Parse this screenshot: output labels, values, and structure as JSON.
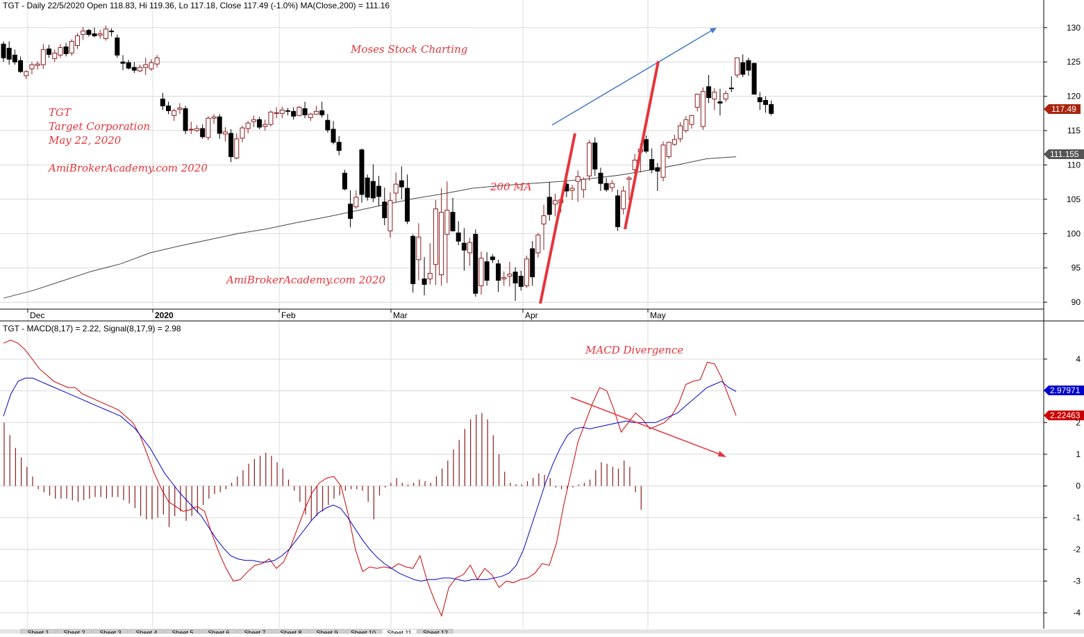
{
  "colors": {
    "annotation": "#e8333a",
    "bull_candle": "#8b1a1a",
    "bear_candle": "#000000",
    "ma_line": "#444444",
    "macd_line": "#cc0000",
    "signal_line": "#0000cc",
    "histogram": "#8b1a1a",
    "price_tag": "#a8250e",
    "ma_tag": "#555555",
    "signal_tag": "#0000cc",
    "macd_tag": "#cc0000",
    "uptrend_arrow": "#4477cc"
  },
  "chart_data": [
    {
      "type": "candlestick",
      "title": "TGT - Daily 22/5/2020 Open 118.83, Hi 119.36, Lo 117.18, Close 117.49 (-1.0%) MA(Close,200) = 111.16",
      "x_ticks": [
        "Dec",
        "2020",
        "Feb",
        "Mar",
        "Apr",
        "May"
      ],
      "y_ticks": [
        90,
        95,
        100,
        105,
        110,
        115,
        120,
        125,
        130
      ],
      "ylim": [
        89,
        132
      ],
      "grid": true,
      "ohlc": [
        [
          127.6,
          128.0,
          125.0,
          125.6
        ],
        [
          127.0,
          128.0,
          124.6,
          125.4
        ],
        [
          126.0,
          126.8,
          124.6,
          125.0
        ],
        [
          125.2,
          125.8,
          123.4,
          123.6
        ],
        [
          123.0,
          123.8,
          122.5,
          123.6
        ],
        [
          124.0,
          125.0,
          123.2,
          124.6
        ],
        [
          124.5,
          125.1,
          123.9,
          124.7
        ],
        [
          124.6,
          127.6,
          124.0,
          126.8
        ],
        [
          126.9,
          127.5,
          125.6,
          126.1
        ],
        [
          125.5,
          126.8,
          125.0,
          126.3
        ],
        [
          126.0,
          127.6,
          125.6,
          127.1
        ],
        [
          127.2,
          127.8,
          125.8,
          126.2
        ],
        [
          126.3,
          128.3,
          125.9,
          128.0
        ],
        [
          127.4,
          129.2,
          126.9,
          128.8
        ],
        [
          129.0,
          130.1,
          128.2,
          129.5
        ],
        [
          129.6,
          129.8,
          128.7,
          129.0
        ],
        [
          129.1,
          130.0,
          128.6,
          128.8
        ],
        [
          128.9,
          129.7,
          128.4,
          129.1
        ],
        [
          128.4,
          130.3,
          128.1,
          129.8
        ],
        [
          129.5,
          129.9,
          128.7,
          129.4
        ],
        [
          128.5,
          129.0,
          125.6,
          126.0
        ],
        [
          125.0,
          126.0,
          123.8,
          124.8
        ],
        [
          124.9,
          125.3,
          123.9,
          124.1
        ],
        [
          124.2,
          125.0,
          123.4,
          123.8
        ],
        [
          123.7,
          124.6,
          123.5,
          124.2
        ],
        [
          124.2,
          125.6,
          123.1,
          124.6
        ],
        [
          124.0,
          125.4,
          123.7,
          124.9
        ],
        [
          124.7,
          126.0,
          124.2,
          125.6
        ],
        [
          119.6,
          120.5,
          118.0,
          118.6
        ],
        [
          118.6,
          119.2,
          117.4,
          117.9
        ],
        [
          117.2,
          118.2,
          116.4,
          117.9
        ],
        [
          118.1,
          119.0,
          117.4,
          118.3
        ],
        [
          118.2,
          118.6,
          114.5,
          115.0
        ],
        [
          115.1,
          116.3,
          114.5,
          115.2
        ],
        [
          115.0,
          115.8,
          114.8,
          115.3
        ],
        [
          115.3,
          115.9,
          113.8,
          114.1
        ],
        [
          114.0,
          117.1,
          113.6,
          116.8
        ],
        [
          116.8,
          117.4,
          116.0,
          117.0
        ],
        [
          117.0,
          117.4,
          113.8,
          114.6
        ],
        [
          114.5,
          115.5,
          113.4,
          114.8
        ],
        [
          114.6,
          115.2,
          110.4,
          111.2
        ],
        [
          111.0,
          114.6,
          110.8,
          113.8
        ],
        [
          113.9,
          115.7,
          113.3,
          115.4
        ],
        [
          115.3,
          116.4,
          114.6,
          116.1
        ],
        [
          116.3,
          117.2,
          115.5,
          116.6
        ],
        [
          116.6,
          117.0,
          115.2,
          115.5
        ],
        [
          115.6,
          116.6,
          115.0,
          115.9
        ],
        [
          115.9,
          117.9,
          115.6,
          117.7
        ],
        [
          117.6,
          118.4,
          116.8,
          117.6
        ],
        [
          117.5,
          118.5,
          116.8,
          118.0
        ],
        [
          117.9,
          118.3,
          117.2,
          117.8
        ],
        [
          117.8,
          118.4,
          116.6,
          117.1
        ],
        [
          117.2,
          118.6,
          117.1,
          118.4
        ],
        [
          118.2,
          119.2,
          116.8,
          117.3
        ],
        [
          116.9,
          117.6,
          116.4,
          117.4
        ],
        [
          117.4,
          118.6,
          117.3,
          117.8
        ],
        [
          117.9,
          119.2,
          116.9,
          117.3
        ],
        [
          116.5,
          117.4,
          114.7,
          115.1
        ],
        [
          115.2,
          116.4,
          113.0,
          113.3
        ],
        [
          113.3,
          114.2,
          111.4,
          112.1
        ],
        [
          108.8,
          109.3,
          106.3,
          106.5
        ],
        [
          104.3,
          106.3,
          100.9,
          102.2
        ],
        [
          103.9,
          106.3,
          103.6,
          105.3
        ],
        [
          112.2,
          112.4,
          104.5,
          105.7
        ],
        [
          108.1,
          108.6,
          104.8,
          105.3
        ],
        [
          107.6,
          110.1,
          104.6,
          105.2
        ],
        [
          106.9,
          108.4,
          104.0,
          105.4
        ],
        [
          104.6,
          106.7,
          101.2,
          102.3
        ],
        [
          100.4,
          106.0,
          99.4,
          104.8
        ],
        [
          105.9,
          108.9,
          104.6,
          107.2
        ],
        [
          107.7,
          109.8,
          105.0,
          106.8
        ],
        [
          106.6,
          108.6,
          101.4,
          101.8
        ],
        [
          99.6,
          99.9,
          91.4,
          92.7
        ],
        [
          96.2,
          101.5,
          93.2,
          99.5
        ],
        [
          93.4,
          96.6,
          91.0,
          92.6
        ],
        [
          93.4,
          98.6,
          92.6,
          94.2
        ],
        [
          95.5,
          104.9,
          92.5,
          103.6
        ],
        [
          94.0,
          106.6,
          92.4,
          103.1
        ],
        [
          99.9,
          107.6,
          92.8,
          103.4
        ],
        [
          103.1,
          105.2,
          100.3,
          100.4
        ],
        [
          100.1,
          101.8,
          98.3,
          98.9
        ],
        [
          98.6,
          100.8,
          94.6,
          97.6
        ],
        [
          97.2,
          99.4,
          95.3,
          98.7
        ],
        [
          99.9,
          100.6,
          90.8,
          91.3
        ],
        [
          92.4,
          97.4,
          91.1,
          96.4
        ],
        [
          95.9,
          97.3,
          92.4,
          93.2
        ],
        [
          96.6,
          97.0,
          95.7,
          96.2
        ],
        [
          95.6,
          96.2,
          91.5,
          93.2
        ],
        [
          93.4,
          94.5,
          92.4,
          93.6
        ],
        [
          93.8,
          95.9,
          92.3,
          94.1
        ],
        [
          94.4,
          95.1,
          90.2,
          92.8
        ],
        [
          93.8,
          94.6,
          91.7,
          92.3
        ],
        [
          92.4,
          96.8,
          92.1,
          96.3
        ],
        [
          97.8,
          98.9,
          92.4,
          93.7
        ],
        [
          97.2,
          100.1,
          96.5,
          99.8
        ],
        [
          101.4,
          104.2,
          97.6,
          102.6
        ],
        [
          105.3,
          107.5,
          101.9,
          102.8
        ],
        [
          104.3,
          105.8,
          102.5,
          104.8
        ],
        [
          104.5,
          105.2,
          103.1,
          104.9
        ],
        [
          107.2,
          108.2,
          105.3,
          106.2
        ],
        [
          106.3,
          107.1,
          104.9,
          106.6
        ],
        [
          107.6,
          109.2,
          104.6,
          108.3
        ],
        [
          106.4,
          108.2,
          105.2,
          107.9
        ],
        [
          108.4,
          113.6,
          107.7,
          113.2
        ],
        [
          113.2,
          114.0,
          108.4,
          109.4
        ],
        [
          108.8,
          109.6,
          106.2,
          107.3
        ],
        [
          107.3,
          108.1,
          106.1,
          106.4
        ],
        [
          106.7,
          107.8,
          106.1,
          107.3
        ],
        [
          105.5,
          106.4,
          100.4,
          101.0
        ],
        [
          103.6,
          106.9,
          102.8,
          106.2
        ],
        [
          107.9,
          108.4,
          104.9,
          108.1
        ],
        [
          109.3,
          111.6,
          108.2,
          110.7
        ],
        [
          111.9,
          113.1,
          108.9,
          112.3
        ],
        [
          113.7,
          114.3,
          111.7,
          112.0
        ],
        [
          110.8,
          112.4,
          108.8,
          109.3
        ],
        [
          109.6,
          110.3,
          106.2,
          109.1
        ],
        [
          108.2,
          113.4,
          107.6,
          112.9
        ],
        [
          111.2,
          113.4,
          110.9,
          113.3
        ],
        [
          113.0,
          114.4,
          112.8,
          113.7
        ],
        [
          113.8,
          116.2,
          113.3,
          115.7
        ],
        [
          115.0,
          117.1,
          114.7,
          116.6
        ],
        [
          115.9,
          117.3,
          115.3,
          117.2
        ],
        [
          118.4,
          120.4,
          117.8,
          120.3
        ],
        [
          115.6,
          121.3,
          115.1,
          120.7
        ],
        [
          121.4,
          123.1,
          119.0,
          119.8
        ],
        [
          119.6,
          121.2,
          118.0,
          120.6
        ],
        [
          119.2,
          121.1,
          117.2,
          119.0
        ],
        [
          119.6,
          120.8,
          119.2,
          120.4
        ],
        [
          121.2,
          122.9,
          120.6,
          121.1
        ],
        [
          123.1,
          125.6,
          122.7,
          125.6
        ],
        [
          124.9,
          126.1,
          122.8,
          123.2
        ],
        [
          125.2,
          125.6,
          123.0,
          123.8
        ],
        [
          124.8,
          124.9,
          120.3,
          120.3
        ],
        [
          119.8,
          120.6,
          118.0,
          119.2
        ],
        [
          119.4,
          120.0,
          117.6,
          118.8
        ],
        [
          118.8,
          119.4,
          117.2,
          117.5
        ]
      ],
      "ma_label": "200 MA",
      "ma200": [
        90.6,
        91.7,
        93.1,
        94.5,
        95.6,
        97.2,
        98.2,
        99.1,
        100.0,
        100.7,
        101.6,
        102.4,
        103.3,
        104.2,
        105.1,
        105.8,
        106.6,
        107.0,
        107.3,
        107.6,
        108.0,
        108.5,
        109.2,
        110.0,
        110.9,
        111.2
      ],
      "last_price_tag": "117.49",
      "ma_tag": "111.155"
    },
    {
      "type": "line",
      "title": "TGT - MACD(8,17) = 2.22, Signal(8,17,9) = 2.98",
      "y_ticks": [
        -4,
        -3,
        -2,
        -1,
        0,
        1,
        2,
        3,
        4
      ],
      "ylim": [
        -4.5,
        4.7
      ],
      "grid": true,
      "series": [
        {
          "name": "MACD(8,17)",
          "values": [
            4.5,
            4.6,
            4.5,
            4.3,
            4.0,
            3.7,
            3.5,
            3.3,
            3.2,
            3.1,
            3.1,
            2.9,
            2.8,
            2.7,
            2.6,
            2.5,
            2.4,
            2.2,
            2.0,
            1.6,
            1.0,
            0.4,
            -0.1,
            -0.5,
            -0.65,
            -0.8,
            -0.75,
            -0.65,
            -0.8,
            -1.5,
            -2.1,
            -2.6,
            -3.0,
            -2.95,
            -2.7,
            -2.5,
            -2.45,
            -2.3,
            -2.6,
            -2.4,
            -1.9,
            -1.3,
            -0.7,
            -0.2,
            0.1,
            0.25,
            0.3,
            0.0,
            -0.9,
            -2.0,
            -2.7,
            -2.55,
            -2.6,
            -2.55,
            -2.6,
            -2.45,
            -2.55,
            -2.6,
            -2.2,
            -3.0,
            -3.6,
            -4.1,
            -3.2,
            -2.9,
            -2.8,
            -2.5,
            -2.95,
            -2.6,
            -2.8,
            -3.2,
            -3.0,
            -3.05,
            -2.95,
            -2.9,
            -2.75,
            -2.45,
            -2.5,
            -1.8,
            -0.6,
            0.4,
            1.4,
            2.0,
            2.6,
            3.1,
            3.0,
            2.4,
            1.7,
            2.0,
            2.3,
            2.1,
            1.8,
            1.9,
            2.0,
            2.2,
            2.6,
            3.2,
            3.3,
            3.35,
            3.9,
            3.85,
            3.4,
            2.8,
            2.22
          ]
        },
        {
          "name": "Signal(8,17,9)",
          "values": [
            2.2,
            2.9,
            3.3,
            3.4,
            3.4,
            3.3,
            3.2,
            3.1,
            3.0,
            2.9,
            2.8,
            2.7,
            2.6,
            2.5,
            2.4,
            2.3,
            2.2,
            2.0,
            1.8,
            1.5,
            1.2,
            0.8,
            0.4,
            0.1,
            -0.2,
            -0.45,
            -0.7,
            -0.95,
            -1.3,
            -1.65,
            -1.95,
            -2.2,
            -2.3,
            -2.35,
            -2.35,
            -2.4,
            -2.4,
            -2.35,
            -2.2,
            -2.0,
            -1.7,
            -1.4,
            -1.1,
            -0.85,
            -0.7,
            -0.6,
            -0.7,
            -1.0,
            -1.35,
            -1.7,
            -2.0,
            -2.25,
            -2.45,
            -2.6,
            -2.75,
            -2.85,
            -2.95,
            -3.0,
            -2.95,
            -2.95,
            -2.9,
            -2.9,
            -2.95,
            -3.0,
            -2.95,
            -2.95,
            -2.95,
            -2.9,
            -2.85,
            -2.75,
            -2.5,
            -2.0,
            -1.3,
            -0.6,
            0.1,
            0.7,
            1.2,
            1.6,
            1.8,
            1.85,
            1.8,
            1.85,
            1.9,
            1.95,
            2.0,
            2.05,
            2.0,
            2.0,
            2.0,
            2.0,
            2.1,
            2.2,
            2.3,
            2.5,
            2.7,
            2.9,
            3.1,
            3.2,
            3.3,
            3.1,
            2.98
          ]
        }
      ],
      "histogram": [
        2.0,
        1.6,
        1.2,
        0.9,
        0.6,
        0.3,
        -0.1,
        -0.2,
        -0.3,
        -0.4,
        -0.4,
        -0.4,
        -0.45,
        -0.5,
        -0.45,
        -0.4,
        -0.35,
        -0.35,
        -0.4,
        -0.35,
        -0.35,
        -0.45,
        -0.55,
        -0.7,
        -0.95,
        -1.05,
        -1.05,
        -1.0,
        -0.9,
        -1.3,
        -0.95,
        -0.8,
        -1.1,
        -0.95,
        -0.85,
        -0.6,
        -0.4,
        -0.25,
        -0.2,
        -0.1,
        0.1,
        0.3,
        0.5,
        0.7,
        0.85,
        0.95,
        1.05,
        0.95,
        0.75,
        0.55,
        0.2,
        -0.15,
        -0.5,
        -0.9,
        -1.1,
        -0.95,
        -0.8,
        -0.6,
        -0.4,
        -0.3,
        -0.15,
        -0.1,
        -0.1,
        -0.15,
        -0.5,
        -1.05,
        -0.3,
        -0.05,
        0.1,
        0.25,
        0.1,
        0.05,
        0.1,
        0.2,
        0.15,
        0.1,
        0.3,
        0.55,
        0.8,
        1.15,
        1.45,
        1.8,
        2.1,
        2.25,
        2.3,
        2.1,
        1.6,
        1.0,
        0.45,
        0.1,
        0.05,
        0.05,
        0.15,
        0.25,
        0.4,
        0.35,
        0.25,
        -0.05,
        -0.1,
        -0.1,
        -0.05,
        0.05,
        0.1,
        0.2,
        0.5,
        0.75,
        0.7,
        0.6,
        0.55,
        0.8,
        0.6,
        -0.2,
        -0.75
      ],
      "macd_tag": "2.22463",
      "signal_tag": "2.97971"
    }
  ],
  "annotations": {
    "title": "Moses Stock Charting",
    "ticker": "TGT",
    "company": "Target Corporation",
    "date": "May 22, 2020",
    "watermark1": "AmiBrokerAcademy.com  2020",
    "watermark2": "AmiBrokerAcademy.com 2020",
    "ma_label": "200 MA",
    "divergence": "MACD Divergence"
  },
  "sheet_tabs": [
    "Sheet 1",
    "Sheet 2",
    "Sheet 3",
    "Sheet 4",
    "Sheet 5",
    "Sheet 6",
    "Sheet 7",
    "Sheet 8",
    "Sheet 9",
    "Sheet 10",
    "Sheet 11",
    "Sheet 12"
  ]
}
